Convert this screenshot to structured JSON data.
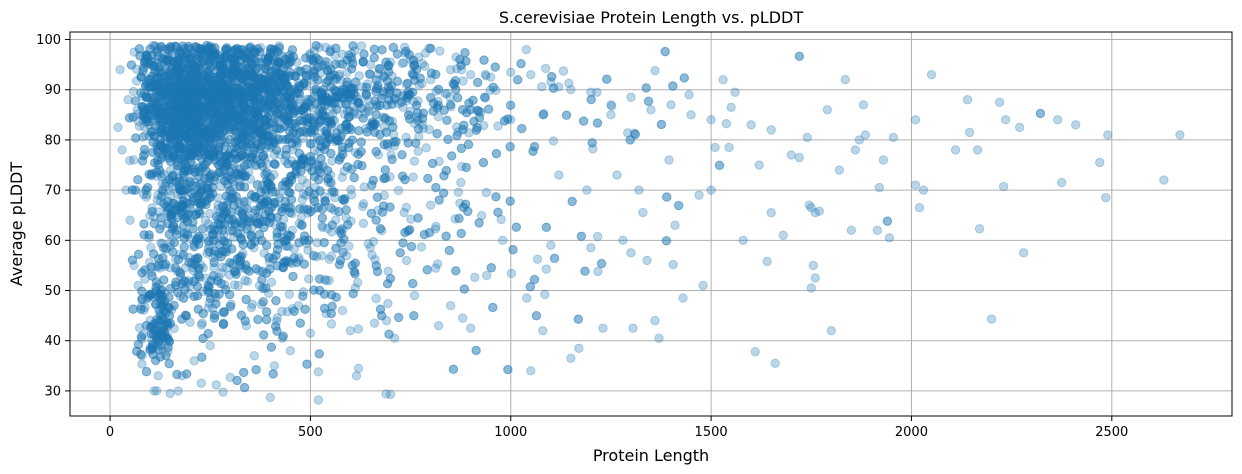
{
  "chart_data": {
    "type": "scatter",
    "title": "S.cerevisiae Protein Length vs. pLDDT",
    "xlabel": "Protein Length",
    "ylabel": "Average pLDDT",
    "xlim": [
      -100,
      2800
    ],
    "ylim": [
      25,
      101.5
    ],
    "xticks": [
      0,
      500,
      1000,
      1500,
      2000,
      2500
    ],
    "yticks": [
      30,
      40,
      50,
      60,
      70,
      80,
      90,
      100
    ],
    "grid": true,
    "point_color": "#1f77b4",
    "point_alpha": 0.3,
    "series": [
      {
        "name": "",
        "n_points_approx": 5800,
        "notes": "Dense cloud; majority of points between length 50-900 and pLDDT 50-98",
        "points": [
          [
            2670,
            81
          ],
          [
            2630,
            72
          ],
          [
            2490,
            81
          ],
          [
            2485,
            68.5
          ],
          [
            2470,
            75.5
          ],
          [
            2410,
            83
          ],
          [
            2375,
            71.5
          ],
          [
            2365,
            84
          ],
          [
            2280,
            57.5
          ],
          [
            2270,
            82.5
          ],
          [
            2235,
            84
          ],
          [
            2230,
            70.7
          ],
          [
            2220,
            87.5
          ],
          [
            2200,
            44.3
          ],
          [
            2170,
            62.3
          ],
          [
            2165,
            78
          ],
          [
            2145,
            81.5
          ],
          [
            2140,
            88
          ],
          [
            2110,
            78
          ],
          [
            2050,
            93
          ],
          [
            2030,
            70
          ],
          [
            2020,
            66.5
          ],
          [
            2010,
            84
          ],
          [
            2010,
            71
          ],
          [
            1955,
            80.5
          ],
          [
            1945,
            60.5
          ],
          [
            1930,
            76
          ],
          [
            1920,
            70.5
          ],
          [
            1915,
            62
          ],
          [
            1885,
            81
          ],
          [
            1880,
            87
          ],
          [
            1870,
            80
          ],
          [
            1860,
            78
          ],
          [
            1850,
            62
          ],
          [
            1835,
            92
          ],
          [
            1820,
            74
          ],
          [
            1800,
            42
          ],
          [
            1790,
            86
          ],
          [
            1760,
            52.5
          ],
          [
            1755,
            55
          ],
          [
            1750,
            50.5
          ],
          [
            1750,
            66.5
          ],
          [
            1745,
            67
          ],
          [
            1760,
            65.5
          ],
          [
            1770,
            65.8
          ],
          [
            1740,
            80.5
          ],
          [
            1720,
            76.5
          ],
          [
            1700,
            77
          ],
          [
            1680,
            61
          ],
          [
            1660,
            35.5
          ],
          [
            1650,
            65.5
          ],
          [
            1640,
            55.8
          ],
          [
            1620,
            75
          ],
          [
            1610,
            37.8
          ],
          [
            1580,
            60
          ],
          [
            1560,
            89.5
          ],
          [
            1545,
            78.5
          ],
          [
            1530,
            92
          ],
          [
            1510,
            78.5
          ],
          [
            1500,
            70
          ],
          [
            1480,
            51
          ],
          [
            1470,
            69
          ],
          [
            1445,
            89
          ],
          [
            1430,
            48.5
          ],
          [
            1410,
            63
          ],
          [
            1395,
            76
          ],
          [
            1370,
            40.5
          ],
          [
            1360,
            93.8
          ],
          [
            1360,
            44
          ],
          [
            1340,
            56
          ],
          [
            1320,
            70
          ],
          [
            1305,
            42.5
          ],
          [
            1300,
            57.5
          ],
          [
            1280,
            60
          ],
          [
            1265,
            73
          ],
          [
            1250,
            85
          ],
          [
            1230,
            42.5
          ],
          [
            1215,
            89.5
          ],
          [
            1200,
            58.5
          ],
          [
            1190,
            70
          ],
          [
            1170,
            38.5
          ],
          [
            1150,
            36.5
          ],
          [
            1120,
            73
          ],
          [
            1100,
            59
          ],
          [
            1080,
            42
          ],
          [
            1050,
            34
          ],
          [
            1040,
            48.5
          ],
          [
            1000,
            84
          ],
          [
            980,
            60
          ],
          [
            940,
            53
          ],
          [
            900,
            42.5
          ],
          [
            880,
            44.5
          ],
          [
            850,
            47
          ],
          [
            820,
            43
          ],
          [
            800,
            67
          ],
          [
            780,
            83
          ],
          [
            760,
            49
          ],
          [
            740,
            56
          ],
          [
            710,
            40.5
          ],
          [
            700,
            29.3
          ],
          [
            690,
            44
          ],
          [
            660,
            43.5
          ],
          [
            620,
            34.5
          ],
          [
            615,
            33
          ],
          [
            600,
            42
          ],
          [
            580,
            46
          ],
          [
            540,
            52
          ],
          [
            520,
            28.2
          ],
          [
            520,
            33.8
          ],
          [
            500,
            41.5
          ],
          [
            490,
            88
          ],
          [
            470,
            47
          ],
          [
            455,
            62
          ],
          [
            450,
            38
          ],
          [
            440,
            56
          ],
          [
            430,
            40.5
          ],
          [
            410,
            35
          ],
          [
            400,
            28.7
          ],
          [
            380,
            71
          ],
          [
            360,
            37
          ],
          [
            340,
            43
          ],
          [
            320,
            51
          ],
          [
            300,
            32.7
          ],
          [
            280,
            60
          ],
          [
            265,
            31.2
          ],
          [
            250,
            39
          ],
          [
            230,
            43.5
          ],
          [
            210,
            36
          ],
          [
            200,
            51
          ],
          [
            180,
            33
          ],
          [
            170,
            30
          ],
          [
            150,
            29.5
          ],
          [
            140,
            37
          ],
          [
            130,
            45
          ],
          [
            120,
            33
          ],
          [
            110,
            30
          ],
          [
            100,
            38.5
          ],
          [
            90,
            43
          ],
          [
            80,
            37
          ],
          [
            70,
            51
          ],
          [
            60,
            55
          ],
          [
            50,
            64
          ],
          [
            40,
            70
          ],
          [
            30,
            78
          ],
          [
            20,
            82.5
          ],
          [
            25,
            94
          ],
          [
            45,
            88
          ],
          [
            60,
            97.5
          ],
          [
            100,
            95
          ],
          [
            150,
            97.8
          ],
          [
            200,
            98
          ],
          [
            250,
            98.7
          ],
          [
            300,
            97.5
          ],
          [
            350,
            98.3
          ],
          [
            400,
            97.5
          ],
          [
            450,
            97
          ],
          [
            500,
            96
          ],
          [
            550,
            98
          ],
          [
            600,
            96.5
          ],
          [
            650,
            95
          ],
          [
            700,
            95.5
          ],
          [
            750,
            96
          ],
          [
            800,
            92
          ],
          [
            850,
            94
          ],
          [
            900,
            93
          ],
          [
            950,
            92.5
          ],
          [
            1000,
            93.5
          ],
          [
            1050,
            93
          ],
          [
            1100,
            91.5
          ],
          [
            1150,
            90
          ],
          [
            1200,
            89.5
          ],
          [
            1250,
            87
          ],
          [
            1300,
            88.5
          ],
          [
            1350,
            86
          ],
          [
            1400,
            87
          ],
          [
            1450,
            85
          ],
          [
            1500,
            84
          ],
          [
            1550,
            86.5
          ],
          [
            1600,
            83
          ],
          [
            1650,
            82
          ]
        ]
      }
    ]
  }
}
